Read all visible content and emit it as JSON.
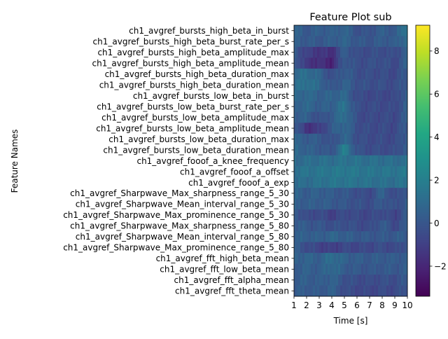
{
  "chart_data": {
    "type": "heatmap",
    "title": "Feature Plot sub",
    "xlabel": "Time [s]",
    "ylabel": "Feature Names",
    "x_ticks": [
      "1",
      "2",
      "3",
      "4",
      "5",
      "6",
      "7",
      "8",
      "9",
      "10"
    ],
    "xlim": [
      1,
      10
    ],
    "features": [
      "ch1_avgref_bursts_high_beta_in_burst",
      "ch1_avgref_bursts_high_beta_burst_rate_per_s",
      "ch1_avgref_bursts_high_beta_amplitude_max",
      "ch1_avgref_bursts_high_beta_amplitude_mean",
      "ch1_avgref_bursts_high_beta_duration_max",
      "ch1_avgref_bursts_high_beta_duration_mean",
      "ch1_avgref_bursts_low_beta_in_burst",
      "ch1_avgref_bursts_low_beta_burst_rate_per_s",
      "ch1_avgref_bursts_low_beta_amplitude_max",
      "ch1_avgref_bursts_low_beta_amplitude_mean",
      "ch1_avgref_bursts_low_beta_duration_max",
      "ch1_avgref_bursts_low_beta_duration_mean",
      "ch1_avgref_fooof_a_knee_frequency",
      "ch1_avgref_fooof_a_offset",
      "ch1_avgref_fooof_a_exp",
      "ch1_avgref_Sharpwave_Max_sharpness_range_5_30",
      "ch1_avgref_Sharpwave_Mean_interval_range_5_30",
      "ch1_avgref_Sharpwave_Max_prominence_range_5_30",
      "ch1_avgref_Sharpwave_Max_sharpness_range_5_80",
      "ch1_avgref_Sharpwave_Mean_interval_range_5_80",
      "ch1_avgref_Sharpwave_Max_prominence_range_5_80",
      "ch1_avgref_fft_high_beta_mean",
      "ch1_avgref_fft_low_beta_mean",
      "ch1_avgref_fft_alpha_mean",
      "ch1_avgref_fft_theta_mean"
    ],
    "colorbar": {
      "colormap": "viridis",
      "range": [
        -3.4,
        9.2
      ],
      "ticks": [
        -2,
        0,
        2,
        4,
        6,
        8
      ]
    },
    "heatmap_series": {
      "time": [
        1,
        2,
        3,
        4,
        5,
        6,
        7,
        8,
        9,
        10
      ],
      "values": [
        [
          0.6,
          0.1,
          0.4,
          0.3,
          0.7,
          -0.2,
          -0.1,
          0.4,
          0.1,
          1.8
        ],
        [
          0.4,
          0.2,
          0.1,
          0.3,
          0.6,
          0.1,
          0.0,
          0.3,
          0.2,
          1.2
        ],
        [
          0.3,
          -1.0,
          -1.3,
          -1.7,
          0.4,
          -0.5,
          -0.4,
          -0.3,
          -0.5,
          0.6
        ],
        [
          0.5,
          -1.4,
          -1.6,
          -2.1,
          0.3,
          -0.4,
          -0.3,
          -0.2,
          -0.6,
          0.5
        ],
        [
          0.8,
          1.2,
          0.6,
          -0.5,
          0.4,
          -0.3,
          -0.4,
          -0.4,
          -0.6,
          0.2
        ],
        [
          1.0,
          1.4,
          0.8,
          -0.2,
          0.6,
          -0.2,
          -0.3,
          -0.3,
          -0.5,
          0.3
        ],
        [
          0.7,
          0.9,
          0.5,
          0.6,
          0.8,
          -0.5,
          -0.6,
          -0.6,
          -0.7,
          0.6
        ],
        [
          0.6,
          0.8,
          0.4,
          0.5,
          1.4,
          -0.4,
          -0.5,
          -0.5,
          -0.6,
          0.5
        ],
        [
          0.5,
          0.4,
          -0.4,
          0.3,
          1.3,
          -0.4,
          -0.6,
          -0.5,
          -0.6,
          0.4
        ],
        [
          0.4,
          -1.5,
          -1.2,
          0.2,
          0.9,
          -0.3,
          -0.5,
          -0.5,
          -0.6,
          0.3
        ],
        [
          0.6,
          0.3,
          0.2,
          -0.4,
          0.8,
          -0.3,
          -0.5,
          -0.5,
          -0.6,
          0.4
        ],
        [
          0.9,
          0.5,
          0.3,
          -0.2,
          2.1,
          -0.2,
          -0.4,
          -0.4,
          -0.5,
          0.5
        ],
        [
          1.0,
          1.1,
          1.2,
          1.2,
          1.4,
          1.3,
          1.2,
          1.2,
          1.1,
          1.2
        ],
        [
          1.3,
          1.4,
          1.5,
          1.6,
          1.7,
          1.6,
          1.5,
          1.5,
          1.5,
          1.6
        ],
        [
          1.0,
          1.1,
          1.3,
          1.5,
          1.5,
          1.4,
          1.3,
          1.2,
          1.2,
          1.4
        ],
        [
          0.6,
          0.3,
          0.5,
          0.2,
          0.1,
          -0.3,
          -0.6,
          0.6,
          -0.7,
          0.4
        ],
        [
          0.5,
          0.3,
          0.4,
          0.2,
          0.0,
          -0.2,
          -0.4,
          0.2,
          -0.4,
          0.3
        ],
        [
          0.4,
          -0.6,
          -0.4,
          -1.0,
          -0.4,
          -0.6,
          -0.7,
          -0.3,
          -0.9,
          0.3
        ],
        [
          0.5,
          0.1,
          0.0,
          -0.3,
          -0.2,
          -0.4,
          -0.6,
          0.3,
          -0.6,
          0.2
        ],
        [
          0.4,
          0.5,
          0.3,
          0.7,
          0.4,
          0.2,
          0.1,
          0.1,
          0.2,
          0.3
        ],
        [
          0.4,
          -0.4,
          -0.8,
          -1.1,
          -0.6,
          -0.7,
          -0.6,
          -0.4,
          -0.7,
          0.1
        ],
        [
          0.5,
          0.6,
          0.4,
          1.2,
          0.5,
          0.3,
          0.2,
          0.3,
          0.2,
          0.4
        ],
        [
          0.4,
          0.5,
          0.3,
          1.0,
          0.3,
          0.1,
          0.0,
          0.2,
          0.1,
          0.3
        ],
        [
          0.3,
          0.4,
          0.2,
          0.6,
          -0.2,
          -0.4,
          -0.5,
          -0.3,
          -0.4,
          0.1
        ],
        [
          0.2,
          0.3,
          0.1,
          0.5,
          -0.4,
          -0.6,
          -0.7,
          -0.5,
          -0.6,
          0.0
        ]
      ]
    }
  }
}
